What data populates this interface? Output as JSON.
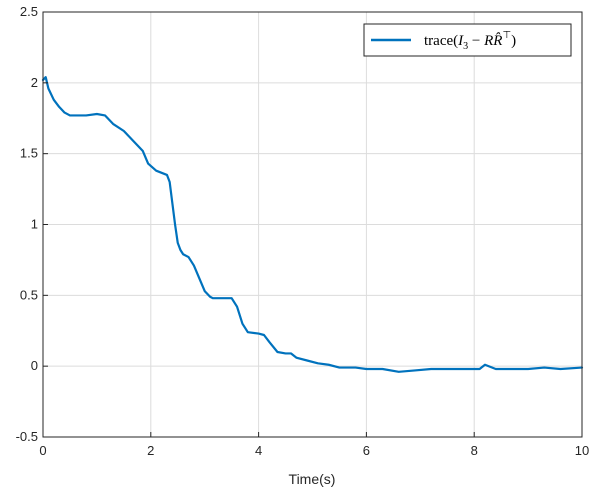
{
  "chart_data": {
    "type": "line",
    "title": "",
    "xlabel": "Time(s)",
    "ylabel": "",
    "xlim": [
      0,
      10
    ],
    "ylim": [
      -0.5,
      2.5
    ],
    "x_ticks": [
      0,
      2,
      4,
      6,
      8,
      10
    ],
    "y_ticks": [
      -0.5,
      0,
      0.5,
      1,
      1.5,
      2,
      2.5
    ],
    "x_tick_labels": [
      "0",
      "2",
      "4",
      "6",
      "8",
      "10"
    ],
    "y_tick_labels": [
      "-0.5",
      "0",
      "0.5",
      "1",
      "1.5",
      "2",
      "2.5"
    ],
    "grid": true,
    "legend_position": "top-right",
    "series": [
      {
        "name": "trace(I_3 - R R̂^T)",
        "color": "#0072BD",
        "x": [
          0,
          0.05,
          0.1,
          0.2,
          0.3,
          0.4,
          0.5,
          0.6,
          0.8,
          1.0,
          1.15,
          1.3,
          1.5,
          1.7,
          1.85,
          1.95,
          2.1,
          2.3,
          2.35,
          2.4,
          2.45,
          2.5,
          2.55,
          2.6,
          2.7,
          2.8,
          2.9,
          3.0,
          3.1,
          3.15,
          3.3,
          3.5,
          3.6,
          3.7,
          3.8,
          4.0,
          4.1,
          4.2,
          4.35,
          4.5,
          4.6,
          4.7,
          4.9,
          5.1,
          5.3,
          5.5,
          5.8,
          6.0,
          6.3,
          6.6,
          6.9,
          7.2,
          7.5,
          7.8,
          8.1,
          8.2,
          8.4,
          8.7,
          9.0,
          9.3,
          9.6,
          10.0
        ],
        "y": [
          2.02,
          2.04,
          1.96,
          1.88,
          1.83,
          1.79,
          1.77,
          1.77,
          1.77,
          1.78,
          1.77,
          1.71,
          1.66,
          1.58,
          1.52,
          1.43,
          1.38,
          1.35,
          1.3,
          1.15,
          1.0,
          0.87,
          0.82,
          0.79,
          0.77,
          0.71,
          0.62,
          0.53,
          0.49,
          0.48,
          0.48,
          0.48,
          0.42,
          0.3,
          0.24,
          0.23,
          0.22,
          0.17,
          0.1,
          0.09,
          0.09,
          0.06,
          0.04,
          0.02,
          0.01,
          -0.01,
          -0.01,
          -0.02,
          -0.02,
          -0.04,
          -0.03,
          -0.02,
          -0.02,
          -0.02,
          -0.02,
          0.01,
          -0.02,
          -0.02,
          -0.02,
          -0.01,
          -0.02,
          -0.01
        ]
      }
    ]
  }
}
